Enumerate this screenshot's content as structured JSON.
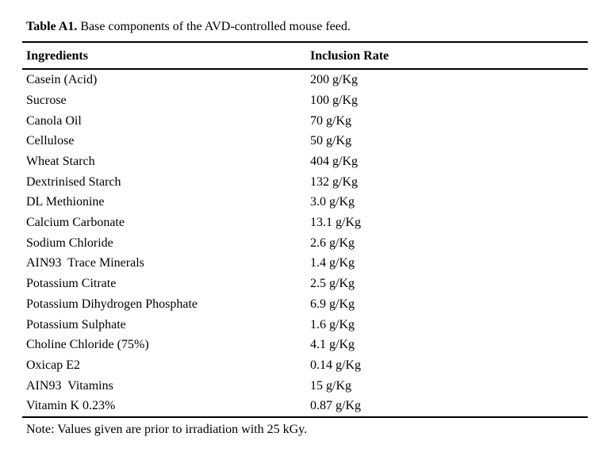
{
  "page": {
    "colors": {
      "background": "#ffffff",
      "text": "#000000",
      "rule": "#000000"
    },
    "caption": {
      "label_bold": "Table A1.",
      "label_rest": " Base components of the AVD-controlled mouse feed."
    },
    "table": {
      "headers": {
        "ingredient": "Ingredients",
        "rate": "Inclusion Rate"
      },
      "rows": [
        {
          "ingredient": "Casein (Acid)",
          "rate": "200 g/Kg"
        },
        {
          "ingredient": "Sucrose",
          "rate": "100 g/Kg"
        },
        {
          "ingredient": "Canola Oil",
          "rate": "70 g/Kg"
        },
        {
          "ingredient": "Cellulose",
          "rate": "50 g/Kg"
        },
        {
          "ingredient": "Wheat Starch",
          "rate": "404 g/Kg"
        },
        {
          "ingredient": "Dextrinised Starch",
          "rate": "132 g/Kg"
        },
        {
          "ingredient": "DL Methionine",
          "rate": "3.0 g/Kg"
        },
        {
          "ingredient": "Calcium Carbonate",
          "rate": "13.1 g/Kg"
        },
        {
          "ingredient": "Sodium Chloride",
          "rate": "2.6 g/Kg"
        },
        {
          "ingredient": "AIN93  Trace Minerals",
          "rate": "1.4 g/Kg"
        },
        {
          "ingredient": "Potassium Citrate",
          "rate": "2.5 g/Kg"
        },
        {
          "ingredient": "Potassium Dihydrogen Phosphate",
          "rate": "6.9 g/Kg"
        },
        {
          "ingredient": "Potassium Sulphate",
          "rate": "1.6 g/Kg"
        },
        {
          "ingredient": "Choline Chloride (75%)",
          "rate": "4.1 g/Kg"
        },
        {
          "ingredient": "Oxicap E2",
          "rate": "0.14 g/Kg"
        },
        {
          "ingredient": "AIN93  Vitamins",
          "rate": "15 g/Kg"
        },
        {
          "ingredient": "Vitamin K 0.23%",
          "rate": "0.87 g/Kg"
        }
      ],
      "note": "Note: Values given are prior to irradiation with 25 kGy."
    }
  }
}
